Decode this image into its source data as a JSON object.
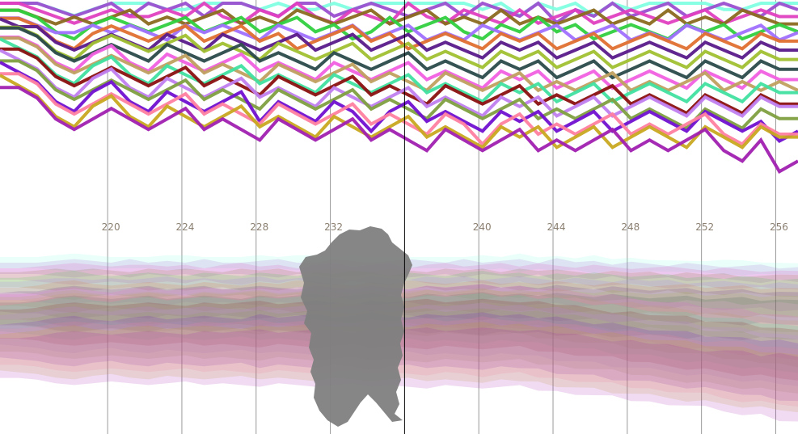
{
  "chart_data": {
    "type": "line",
    "xlim": [
      214.2,
      257.2
    ],
    "x_ticks": [
      220,
      224,
      228,
      232,
      240,
      244,
      248,
      252,
      256
    ],
    "x_tick_labels": [
      "220",
      "224",
      "228",
      "232",
      "240",
      "244",
      "248",
      "252",
      "256"
    ],
    "cursor_x": 236,
    "lane_count": 20,
    "grid": "vertical",
    "legend": "none",
    "panels": [
      "line-stack",
      "translucent-band-stack"
    ],
    "series_count": 20,
    "series": [
      {
        "color": "#7fffe0",
        "values": [
          0,
          0,
          0,
          1,
          2,
          1,
          0,
          0,
          0,
          1,
          1,
          0,
          0,
          0,
          1,
          0,
          1,
          1,
          0,
          1,
          0,
          0,
          0,
          0,
          0,
          0,
          1,
          0,
          2,
          0,
          1,
          0,
          2,
          0,
          1,
          0,
          0,
          0,
          0,
          1,
          1,
          0,
          0,
          0
        ]
      },
      {
        "color": "#9b4fd0",
        "values": [
          0,
          0,
          0,
          1,
          2,
          1,
          0,
          2,
          0,
          1,
          0,
          2,
          0,
          0,
          1,
          2,
          0,
          0,
          2,
          1,
          0,
          1,
          2,
          1,
          0,
          2,
          0,
          1,
          2,
          0,
          3,
          1,
          2,
          0,
          2,
          1,
          0,
          2,
          1,
          0,
          1,
          2,
          0,
          1
        ]
      },
      {
        "color": "#e040c0",
        "values": [
          0,
          0,
          1,
          2,
          3,
          2,
          1,
          2,
          2,
          1,
          2,
          0,
          2,
          3,
          1,
          2,
          0,
          2,
          3,
          1,
          2,
          3,
          0,
          2,
          3,
          1,
          2,
          3,
          1,
          3,
          2,
          1,
          3,
          2,
          1,
          2,
          3,
          2,
          1,
          3,
          2,
          1,
          2,
          2
        ]
      },
      {
        "color": "#8b6a20",
        "values": [
          1,
          1,
          2,
          3,
          2,
          3,
          2,
          1,
          3,
          2,
          3,
          2,
          1,
          3,
          2,
          3,
          1,
          2,
          3,
          2,
          1,
          3,
          2,
          1,
          3,
          2,
          3,
          1,
          3,
          2,
          3,
          2,
          1,
          3,
          2,
          3,
          1,
          3,
          2,
          3,
          1,
          2,
          3,
          3
        ]
      },
      {
        "color": "#30d040",
        "values": [
          1,
          1,
          2,
          4,
          5,
          3,
          2,
          3,
          4,
          3,
          2,
          4,
          3,
          2,
          4,
          3,
          2,
          4,
          3,
          5,
          4,
          2,
          4,
          3,
          2,
          4,
          5,
          3,
          4,
          2,
          4,
          3,
          5,
          4,
          3,
          4,
          5,
          3,
          4,
          3,
          5,
          4,
          3,
          4
        ]
      },
      {
        "color": "#a070ff",
        "values": [
          2,
          2,
          3,
          4,
          4,
          3,
          4,
          3,
          4,
          5,
          3,
          4,
          3,
          4,
          5,
          3,
          4,
          5,
          4,
          3,
          5,
          4,
          3,
          5,
          4,
          5,
          3,
          4,
          5,
          4,
          3,
          5,
          4,
          3,
          5,
          4,
          5,
          3,
          4,
          5,
          4,
          3,
          5,
          4
        ]
      },
      {
        "color": "#e07030",
        "values": [
          2,
          2,
          3,
          5,
          6,
          4,
          3,
          4,
          5,
          4,
          3,
          5,
          4,
          3,
          5,
          4,
          6,
          5,
          4,
          3,
          5,
          4,
          6,
          5,
          4,
          5,
          6,
          4,
          5,
          4,
          6,
          5,
          4,
          6,
          5,
          4,
          5,
          6,
          4,
          5,
          6,
          4,
          5,
          5
        ]
      },
      {
        "color": "#5a1a8a",
        "values": [
          2,
          3,
          3,
          5,
          6,
          5,
          4,
          5,
          6,
          4,
          5,
          6,
          4,
          5,
          6,
          5,
          4,
          6,
          5,
          4,
          6,
          5,
          4,
          6,
          5,
          6,
          7,
          5,
          6,
          5,
          7,
          6,
          5,
          7,
          6,
          5,
          6,
          7,
          5,
          6,
          7,
          5,
          6,
          6
        ]
      },
      {
        "color": "#a0c030",
        "values": [
          3,
          3,
          4,
          6,
          7,
          5,
          4,
          5,
          6,
          5,
          4,
          6,
          5,
          6,
          7,
          5,
          6,
          7,
          6,
          5,
          7,
          6,
          5,
          7,
          6,
          7,
          8,
          6,
          7,
          6,
          8,
          7,
          6,
          8,
          7,
          6,
          7,
          8,
          6,
          7,
          8,
          6,
          7,
          7
        ]
      },
      {
        "color": "#2a4a4a",
        "values": [
          3,
          3,
          4,
          6,
          7,
          6,
          5,
          6,
          7,
          5,
          6,
          7,
          6,
          5,
          7,
          6,
          7,
          8,
          6,
          7,
          8,
          7,
          6,
          8,
          7,
          8,
          9,
          7,
          8,
          7,
          9,
          8,
          7,
          9,
          8,
          7,
          8,
          9,
          7,
          8,
          9,
          7,
          8,
          8
        ]
      },
      {
        "color": "#f060e0",
        "values": [
          4,
          4,
          5,
          7,
          8,
          6,
          5,
          7,
          8,
          6,
          7,
          8,
          7,
          6,
          8,
          7,
          8,
          9,
          7,
          8,
          9,
          8,
          7,
          9,
          8,
          9,
          10,
          8,
          9,
          8,
          10,
          9,
          8,
          10,
          9,
          8,
          9,
          10,
          8,
          9,
          10,
          8,
          9,
          9
        ]
      },
      {
        "color": "#c0a060",
        "values": [
          4,
          4,
          5,
          7,
          8,
          7,
          6,
          7,
          8,
          7,
          6,
          8,
          7,
          8,
          9,
          7,
          8,
          9,
          8,
          7,
          9,
          8,
          9,
          10,
          8,
          9,
          10,
          9,
          8,
          10,
          9,
          10,
          9,
          8,
          10,
          9,
          10,
          9,
          8,
          10,
          9,
          10,
          9,
          10
        ]
      },
      {
        "color": "#40e0a0",
        "values": [
          4,
          5,
          6,
          8,
          9,
          7,
          6,
          8,
          9,
          7,
          8,
          9,
          8,
          7,
          9,
          8,
          9,
          10,
          8,
          9,
          10,
          9,
          8,
          10,
          9,
          10,
          11,
          9,
          10,
          9,
          11,
          10,
          9,
          11,
          10,
          9,
          10,
          11,
          9,
          10,
          11,
          9,
          10,
          10
        ]
      },
      {
        "color": "#8a1010",
        "values": [
          5,
          5,
          6,
          8,
          9,
          8,
          7,
          8,
          9,
          8,
          7,
          9,
          8,
          9,
          10,
          8,
          9,
          10,
          9,
          8,
          10,
          9,
          10,
          11,
          9,
          10,
          11,
          10,
          9,
          11,
          10,
          11,
          10,
          9,
          11,
          10,
          11,
          12,
          10,
          11,
          12,
          10,
          11,
          11
        ]
      },
      {
        "color": "#c080f0",
        "values": [
          5,
          6,
          7,
          9,
          10,
          8,
          7,
          9,
          10,
          8,
          9,
          10,
          9,
          8,
          10,
          9,
          10,
          11,
          9,
          10,
          11,
          10,
          9,
          11,
          10,
          11,
          12,
          10,
          11,
          10,
          12,
          11,
          10,
          12,
          11,
          10,
          11,
          12,
          10,
          11,
          12,
          10,
          11,
          11
        ]
      },
      {
        "color": "#80a040",
        "values": [
          6,
          6,
          7,
          9,
          10,
          9,
          8,
          9,
          10,
          9,
          8,
          10,
          9,
          10,
          11,
          9,
          10,
          11,
          10,
          9,
          11,
          10,
          11,
          12,
          10,
          11,
          12,
          11,
          10,
          12,
          11,
          12,
          11,
          10,
          12,
          11,
          12,
          13,
          11,
          12,
          13,
          11,
          12,
          12
        ]
      },
      {
        "color": "#7010d0",
        "values": [
          6,
          7,
          8,
          10,
          11,
          9,
          8,
          10,
          11,
          9,
          10,
          11,
          10,
          9,
          12,
          10,
          11,
          12,
          10,
          11,
          13,
          11,
          10,
          12,
          11,
          12,
          13,
          11,
          12,
          11,
          13,
          12,
          11,
          13,
          12,
          11,
          12,
          13,
          11,
          12,
          13,
          12,
          14,
          13
        ]
      },
      {
        "color": "#ff80a0",
        "values": [
          7,
          7,
          8,
          10,
          11,
          10,
          9,
          10,
          11,
          10,
          9,
          11,
          10,
          11,
          12,
          10,
          11,
          12,
          11,
          10,
          12,
          11,
          12,
          13,
          11,
          12,
          14,
          12,
          11,
          13,
          12,
          13,
          12,
          11,
          13,
          12,
          13,
          12,
          11,
          13,
          14,
          12,
          13,
          13
        ]
      },
      {
        "color": "#c8a820",
        "values": [
          7,
          8,
          9,
          11,
          12,
          10,
          9,
          11,
          12,
          10,
          11,
          12,
          11,
          10,
          12,
          11,
          12,
          13,
          11,
          12,
          13,
          12,
          11,
          13,
          12,
          13,
          14,
          12,
          13,
          12,
          14,
          13,
          12,
          14,
          13,
          12,
          13,
          14,
          12,
          13,
          14,
          12,
          13,
          13
        ]
      },
      {
        "color": "#a020b0",
        "values": [
          8,
          8,
          9,
          11,
          12,
          11,
          10,
          11,
          12,
          11,
          10,
          12,
          11,
          12,
          13,
          11,
          12,
          13,
          12,
          11,
          13,
          12,
          13,
          14,
          12,
          13,
          14,
          13,
          12,
          14,
          13,
          14,
          13,
          12,
          14,
          13,
          14,
          13,
          12,
          14,
          15,
          13,
          16,
          15
        ]
      }
    ]
  }
}
